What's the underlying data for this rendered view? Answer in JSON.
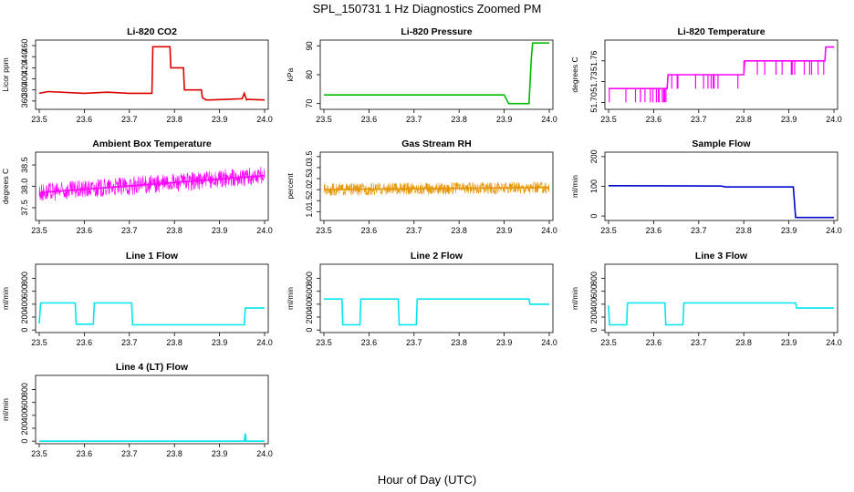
{
  "figure": {
    "title": "SPL_150731  1 Hz Diagnostics Zoomed PM",
    "xlabel": "Hour of Day (UTC)"
  },
  "chart_data": [
    {
      "type": "line",
      "title": "Li-820 CO2",
      "ylabel": "Licor ppm",
      "color": "#dd0000",
      "xlim": [
        23.5,
        24.0
      ],
      "ylim": [
        345,
        470
      ],
      "yticks": [
        360,
        380,
        400,
        420,
        440,
        460
      ],
      "xticks": [
        23.5,
        23.6,
        23.7,
        23.8,
        23.9,
        24.0
      ],
      "series": [
        {
          "x": [
            23.5,
            23.52,
            23.6,
            23.65,
            23.7,
            23.75,
            23.752,
            23.79,
            23.792,
            23.82,
            23.822,
            23.86,
            23.862,
            23.87,
            23.88,
            23.95,
            23.955,
            23.96,
            23.962,
            24.0
          ],
          "y": [
            374,
            377,
            374,
            376,
            374,
            374,
            458,
            458,
            420,
            420,
            380,
            380,
            366,
            362,
            362,
            364,
            374,
            362,
            363,
            362
          ]
        }
      ]
    },
    {
      "type": "line",
      "title": "Li-820 Pressure",
      "ylabel": "kPa",
      "color": "#00bb00",
      "xlim": [
        23.5,
        24.0
      ],
      "ylim": [
        68,
        92
      ],
      "yticks": [
        70,
        80,
        90
      ],
      "xticks": [
        23.5,
        23.6,
        23.7,
        23.8,
        23.9,
        24.0
      ],
      "series": [
        {
          "x": [
            23.5,
            23.9,
            23.91,
            23.955,
            23.96,
            23.963,
            24.0
          ],
          "y": [
            73,
            73,
            70,
            70,
            85,
            91,
            91
          ]
        }
      ]
    },
    {
      "type": "line",
      "title": "Li-820 Temperature",
      "ylabel": "degrees C",
      "color": "#ff00ff",
      "xlim": [
        23.5,
        24.0
      ],
      "ylim": [
        51.69,
        51.79
      ],
      "yticks": [
        51.7,
        51.73,
        51.76
      ],
      "xticks": [
        23.5,
        23.6,
        23.7,
        23.8,
        23.9,
        24.0
      ],
      "series": [
        {
          "x": [
            23.5,
            23.63,
            23.632,
            23.8,
            23.802,
            23.98,
            23.982,
            24.0
          ],
          "y": [
            51.72,
            51.72,
            51.74,
            51.74,
            51.76,
            51.76,
            51.78,
            51.78
          ]
        }
      ]
    },
    {
      "type": "line",
      "title": "Ambient Box Temperature",
      "ylabel": "degrees C",
      "color": "#ff00ff",
      "xlim": [
        23.5,
        24.0
      ],
      "ylim": [
        37.2,
        38.8
      ],
      "yticks": [
        37.5,
        38.0,
        38.5
      ],
      "xticks": [
        23.5,
        23.6,
        23.7,
        23.8,
        23.9,
        24.0
      ],
      "series": [
        {
          "x": [
            23.5,
            24.0
          ],
          "y": [
            37.85,
            38.25
          ]
        }
      ]
    },
    {
      "type": "line",
      "title": "Gas Stream RH",
      "ylabel": "percent",
      "color": "#e69500",
      "xlim": [
        23.5,
        24.0
      ],
      "ylim": [
        0.6,
        3.7
      ],
      "yticks": [
        1.0,
        1.5,
        2.0,
        2.5,
        3.0,
        3.5
      ],
      "xticks": [
        23.5,
        23.6,
        23.7,
        23.8,
        23.9,
        24.0
      ],
      "series": [
        {
          "x": [
            23.5,
            24.0
          ],
          "y": [
            2.0,
            2.1
          ]
        }
      ]
    },
    {
      "type": "line",
      "title": "Sample Flow",
      "ylabel": "ml/min",
      "color": "#0000cc",
      "xlim": [
        23.5,
        24.0
      ],
      "ylim": [
        -15,
        215
      ],
      "yticks": [
        0,
        100,
        200
      ],
      "xticks": [
        23.5,
        23.6,
        23.7,
        23.8,
        23.9,
        24.0
      ],
      "series": [
        {
          "x": [
            23.5,
            23.75,
            23.76,
            23.91,
            23.915,
            24.0
          ],
          "y": [
            102,
            101,
            98,
            98,
            -5,
            -5
          ]
        }
      ]
    },
    {
      "type": "line",
      "title": "Line 1 Flow",
      "ylabel": "ml/min",
      "color": "#00e5ee",
      "xlim": [
        23.5,
        24.0
      ],
      "ylim": [
        -40,
        1020
      ],
      "yticks": [
        0,
        200,
        400,
        600,
        800
      ],
      "xticks": [
        23.5,
        23.6,
        23.7,
        23.8,
        23.9,
        24.0
      ],
      "series": [
        {
          "x": [
            23.5,
            23.503,
            23.58,
            23.582,
            23.62,
            23.622,
            23.705,
            23.707,
            23.955,
            23.957,
            24.0
          ],
          "y": [
            100,
            420,
            420,
            90,
            90,
            420,
            420,
            80,
            80,
            340,
            340
          ]
        }
      ]
    },
    {
      "type": "line",
      "title": "Line 2 Flow",
      "ylabel": "ml/min",
      "color": "#00e5ee",
      "xlim": [
        23.5,
        24.0
      ],
      "ylim": [
        -40,
        1020
      ],
      "yticks": [
        0,
        200,
        400,
        600,
        800
      ],
      "xticks": [
        23.5,
        23.6,
        23.7,
        23.8,
        23.9,
        24.0
      ],
      "series": [
        {
          "x": [
            23.5,
            23.54,
            23.542,
            23.58,
            23.582,
            23.665,
            23.667,
            23.705,
            23.707,
            23.955,
            23.957,
            24.0
          ],
          "y": [
            480,
            480,
            80,
            80,
            480,
            480,
            80,
            80,
            480,
            480,
            400,
            400
          ]
        }
      ]
    },
    {
      "type": "line",
      "title": "Line 3 Flow",
      "ylabel": "ml/min",
      "color": "#00e5ee",
      "xlim": [
        23.5,
        24.0
      ],
      "ylim": [
        -40,
        1020
      ],
      "yticks": [
        0,
        200,
        400,
        600,
        800
      ],
      "xticks": [
        23.5,
        23.6,
        23.7,
        23.8,
        23.9,
        24.0
      ],
      "series": [
        {
          "x": [
            23.5,
            23.502,
            23.54,
            23.542,
            23.625,
            23.627,
            23.665,
            23.667,
            23.915,
            23.917,
            24.0
          ],
          "y": [
            380,
            80,
            80,
            420,
            420,
            80,
            80,
            420,
            420,
            340,
            340
          ]
        }
      ]
    },
    {
      "type": "line",
      "title": "Line 4 (LT) Flow",
      "ylabel": "ml/min",
      "color": "#00e5ee",
      "xlim": [
        23.5,
        24.0
      ],
      "ylim": [
        -40,
        1020
      ],
      "yticks": [
        0,
        200,
        400,
        600,
        800
      ],
      "xticks": [
        23.5,
        23.6,
        23.7,
        23.8,
        23.9,
        24.0
      ],
      "series": [
        {
          "x": [
            23.5,
            23.955,
            23.957,
            23.959,
            24.0
          ],
          "y": [
            0,
            0,
            120,
            0,
            0
          ]
        }
      ]
    }
  ]
}
